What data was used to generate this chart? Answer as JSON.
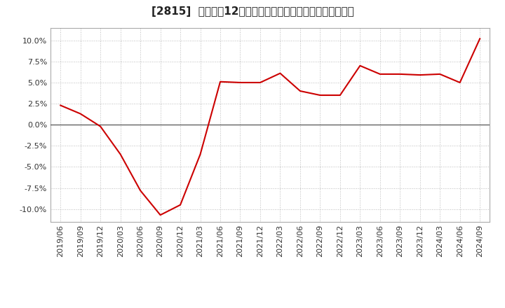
{
  "title": "[2815]  売上高の12か月移動合計の対前年同期増減率の推移",
  "line_color": "#cc0000",
  "background_color": "#ffffff",
  "plot_bg_color": "#ffffff",
  "grid_color": "#bbbbbb",
  "dates": [
    "2019/06",
    "2019/09",
    "2019/12",
    "2020/03",
    "2020/06",
    "2020/09",
    "2020/12",
    "2021/03",
    "2021/06",
    "2021/09",
    "2021/12",
    "2022/03",
    "2022/06",
    "2022/09",
    "2022/12",
    "2023/03",
    "2023/06",
    "2023/09",
    "2023/12",
    "2024/03",
    "2024/06",
    "2024/09"
  ],
  "values": [
    2.3,
    1.3,
    -0.2,
    -3.5,
    -7.8,
    -10.7,
    -9.5,
    -3.5,
    5.1,
    5.0,
    5.0,
    6.1,
    4.0,
    3.5,
    3.5,
    7.0,
    6.0,
    6.0,
    5.9,
    6.0,
    5.0,
    10.2
  ],
  "yticks": [
    -10.0,
    -7.5,
    -5.0,
    -2.5,
    0.0,
    2.5,
    5.0,
    7.5,
    10.0
  ],
  "ylim": [
    -11.5,
    11.5
  ],
  "title_fontsize": 11,
  "tick_fontsize": 8,
  "ytick_fontsize": 8
}
